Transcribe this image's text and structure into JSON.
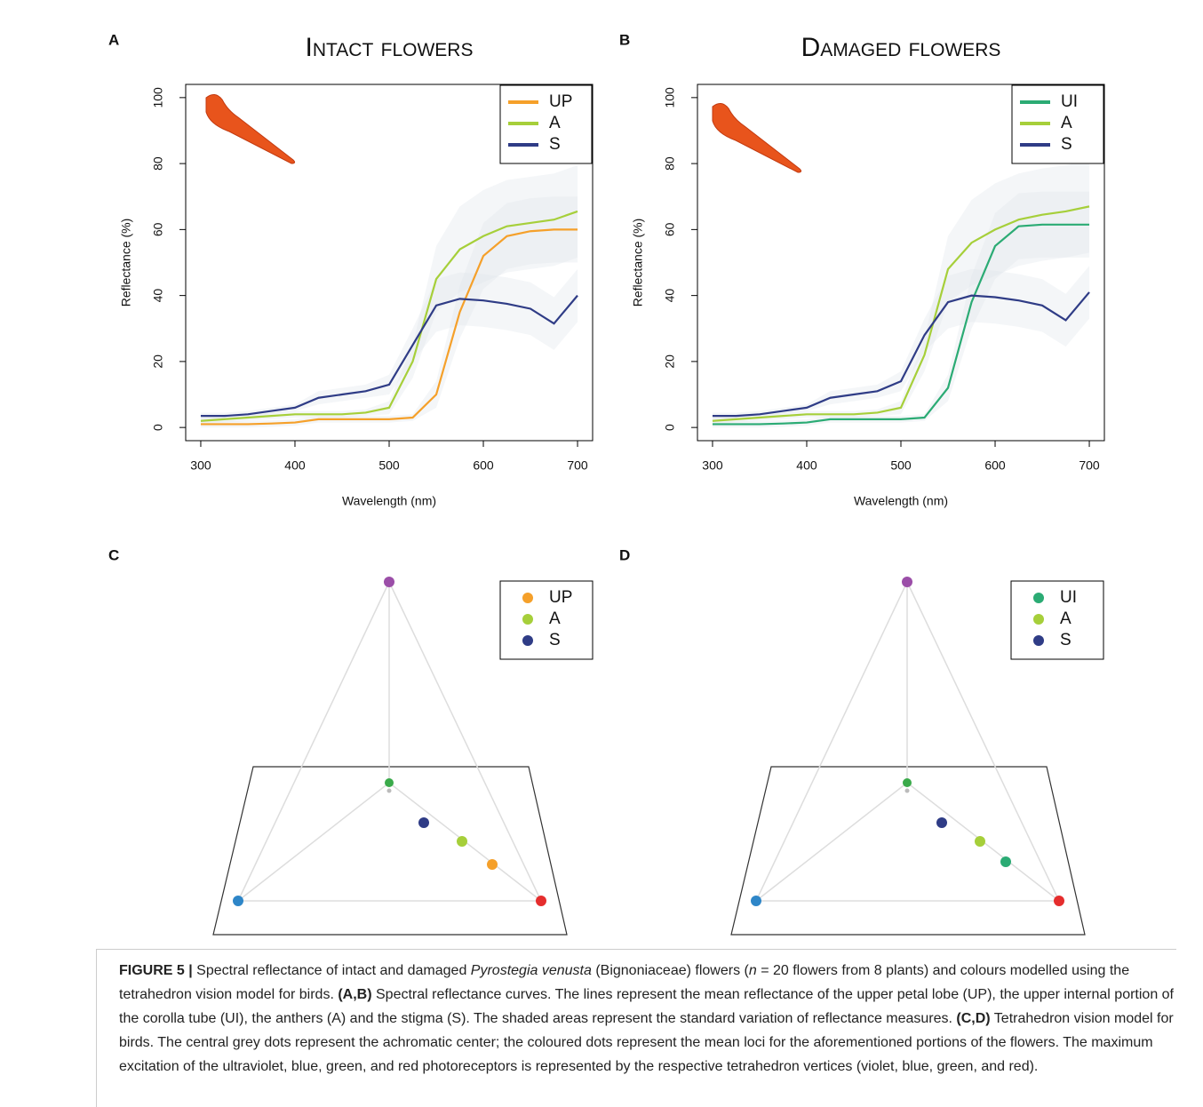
{
  "chart_data": [
    {
      "type": "line",
      "panel": "A",
      "title": "Intact flowers",
      "xlabel": "Wavelength (nm)",
      "ylabel": "Reflectance (%)",
      "x": [
        300,
        325,
        350,
        375,
        400,
        425,
        450,
        475,
        500,
        525,
        550,
        575,
        600,
        625,
        650,
        675,
        700
      ],
      "xlim": [
        284,
        716
      ],
      "ylim": [
        -4,
        104
      ],
      "xticks": [
        300,
        400,
        500,
        600,
        700
      ],
      "yticks": [
        0,
        20,
        40,
        60,
        80,
        100
      ],
      "legend": "top-right",
      "series": [
        {
          "name": "UP",
          "color": "#f5a02a",
          "values": [
            1,
            1,
            1,
            1.2,
            1.5,
            2.5,
            2.5,
            2.5,
            2.5,
            3,
            10,
            35,
            52,
            58,
            59.5,
            60,
            60
          ],
          "sd": [
            1,
            1,
            1,
            1,
            1,
            1,
            1,
            1,
            1,
            1,
            4,
            8,
            10,
            10,
            10,
            10,
            10
          ]
        },
        {
          "name": "A",
          "color": "#a6cf3a",
          "values": [
            2,
            2.5,
            3,
            3.5,
            4,
            4,
            4,
            4.5,
            6,
            20,
            45,
            54,
            58,
            61,
            62,
            63,
            65.5
          ],
          "sd": [
            1,
            1,
            1,
            1,
            1,
            1,
            1,
            1,
            2,
            5,
            10,
            13,
            14,
            14,
            14,
            14,
            14
          ]
        },
        {
          "name": "S",
          "color": "#2f3c86",
          "values": [
            3.5,
            3.5,
            4,
            5,
            6,
            9,
            10,
            11,
            13,
            25,
            37,
            39,
            38.5,
            37.5,
            36,
            31.5,
            40
          ],
          "sd": [
            1,
            1,
            1,
            1,
            1,
            2,
            2,
            2,
            3,
            5,
            8,
            8,
            8,
            8,
            8,
            8,
            8
          ]
        }
      ]
    },
    {
      "type": "line",
      "panel": "B",
      "title": "Damaged flowers",
      "xlabel": "Wavelength (nm)",
      "ylabel": "Reflectance (%)",
      "x": [
        300,
        325,
        350,
        375,
        400,
        425,
        450,
        475,
        500,
        525,
        550,
        575,
        600,
        625,
        650,
        675,
        700
      ],
      "xlim": [
        284,
        716
      ],
      "ylim": [
        -4,
        104
      ],
      "xticks": [
        300,
        400,
        500,
        600,
        700
      ],
      "yticks": [
        0,
        20,
        40,
        60,
        80,
        100
      ],
      "legend": "top-right",
      "series": [
        {
          "name": "UI",
          "color": "#2bab74",
          "values": [
            1,
            1,
            1,
            1.2,
            1.5,
            2.5,
            2.5,
            2.5,
            2.5,
            3,
            12,
            38,
            55,
            61,
            61.5,
            61.5,
            61.5
          ],
          "sd": [
            1,
            1,
            1,
            1,
            1,
            1,
            1,
            1,
            1,
            1,
            4,
            8,
            10,
            10,
            10,
            10,
            10
          ]
        },
        {
          "name": "A",
          "color": "#a6cf3a",
          "values": [
            2,
            2.5,
            3,
            3.5,
            4,
            4,
            4,
            4.5,
            6,
            22,
            48,
            56,
            60,
            63,
            64.5,
            65.5,
            67
          ],
          "sd": [
            1,
            1,
            1,
            1,
            1,
            1,
            1,
            1,
            2,
            5,
            10,
            13,
            14,
            14,
            14,
            14,
            14
          ]
        },
        {
          "name": "S",
          "color": "#2f3c86",
          "values": [
            3.5,
            3.5,
            4,
            5,
            6,
            9,
            10,
            11,
            14,
            28,
            38,
            40,
            39.5,
            38.5,
            37,
            32.5,
            41
          ],
          "sd": [
            1,
            1,
            1,
            1,
            1,
            2,
            2,
            2,
            3,
            5,
            8,
            8,
            8,
            8,
            8,
            8,
            8
          ]
        }
      ]
    },
    {
      "type": "tetrahedron",
      "panel": "C",
      "legend": "top-right",
      "series": [
        {
          "name": "UP",
          "color": "#f5a02a"
        },
        {
          "name": "A",
          "color": "#a6cf3a"
        },
        {
          "name": "S",
          "color": "#2f3c86"
        }
      ]
    },
    {
      "type": "tetrahedron",
      "panel": "D",
      "legend": "top-right",
      "series": [
        {
          "name": "UI",
          "color": "#2bab74"
        },
        {
          "name": "A",
          "color": "#a6cf3a"
        },
        {
          "name": "S",
          "color": "#2f3c86"
        }
      ]
    }
  ],
  "caption": [
    "FIGURE 5 | ",
    "Spectral reflectance of intact and damaged ",
    "Pyrostegia venusta",
    " (Bignoniaceae) flowers (",
    "n",
    " = 20 flowers from 8 plants) and colours modelled using the tetrahedron vision model for birds. ",
    "(A,B)",
    " Spectral reflectance curves. The lines represent the mean reflectance of the upper petal lobe (UP), the upper internal portion of the corolla tube (UI), the anthers (A) and the stigma (S). The shaded areas represent the standard variation of reflectance measures. ",
    "(C,D)",
    " Tetrahedron vision model for birds. The central grey dots represent the achromatic center; the coloured dots represent the mean loci for the aforementioned portions of the flowers. The maximum excitation of the ultraviolet, blue, green, and red photoreceptors is represented by the respective tetrahedron vertices (violet, blue, green, and red)."
  ]
}
